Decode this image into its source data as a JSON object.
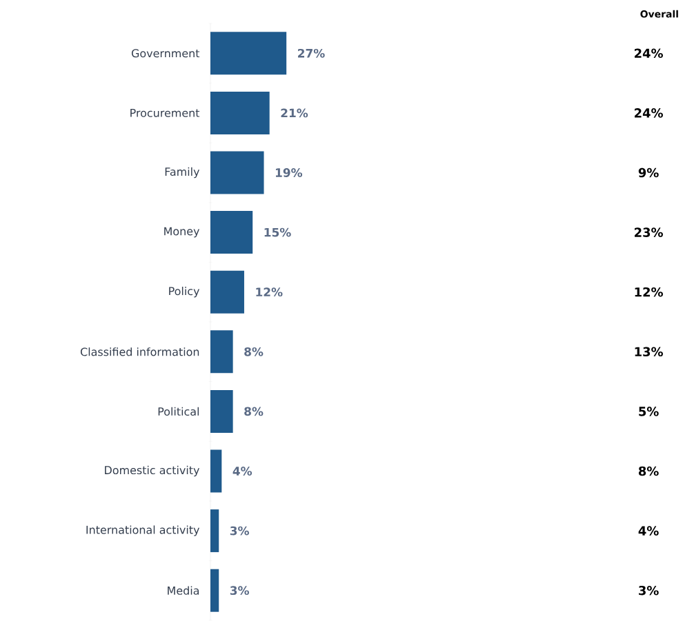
{
  "chart_data": {
    "type": "bar",
    "orientation": "horizontal",
    "categories": [
      "Government",
      "Procurement",
      "Family",
      "Money",
      "Policy",
      "Classified information",
      "Political",
      "Domestic activity",
      "International activity",
      "Media"
    ],
    "values": [
      27,
      21,
      19,
      15,
      12,
      8,
      8,
      4,
      3,
      3
    ],
    "value_labels": [
      "27%",
      "21%",
      "19%",
      "15%",
      "12%",
      "8%",
      "8%",
      "4%",
      "3%",
      "3%"
    ],
    "color": "#1f5a8c",
    "annotations": [
      "Overall",
      "24%",
      "24%",
      "9%",
      "23%",
      "12%",
      "13%",
      "5%",
      "8%",
      "4%",
      "3%"
    ]
  }
}
